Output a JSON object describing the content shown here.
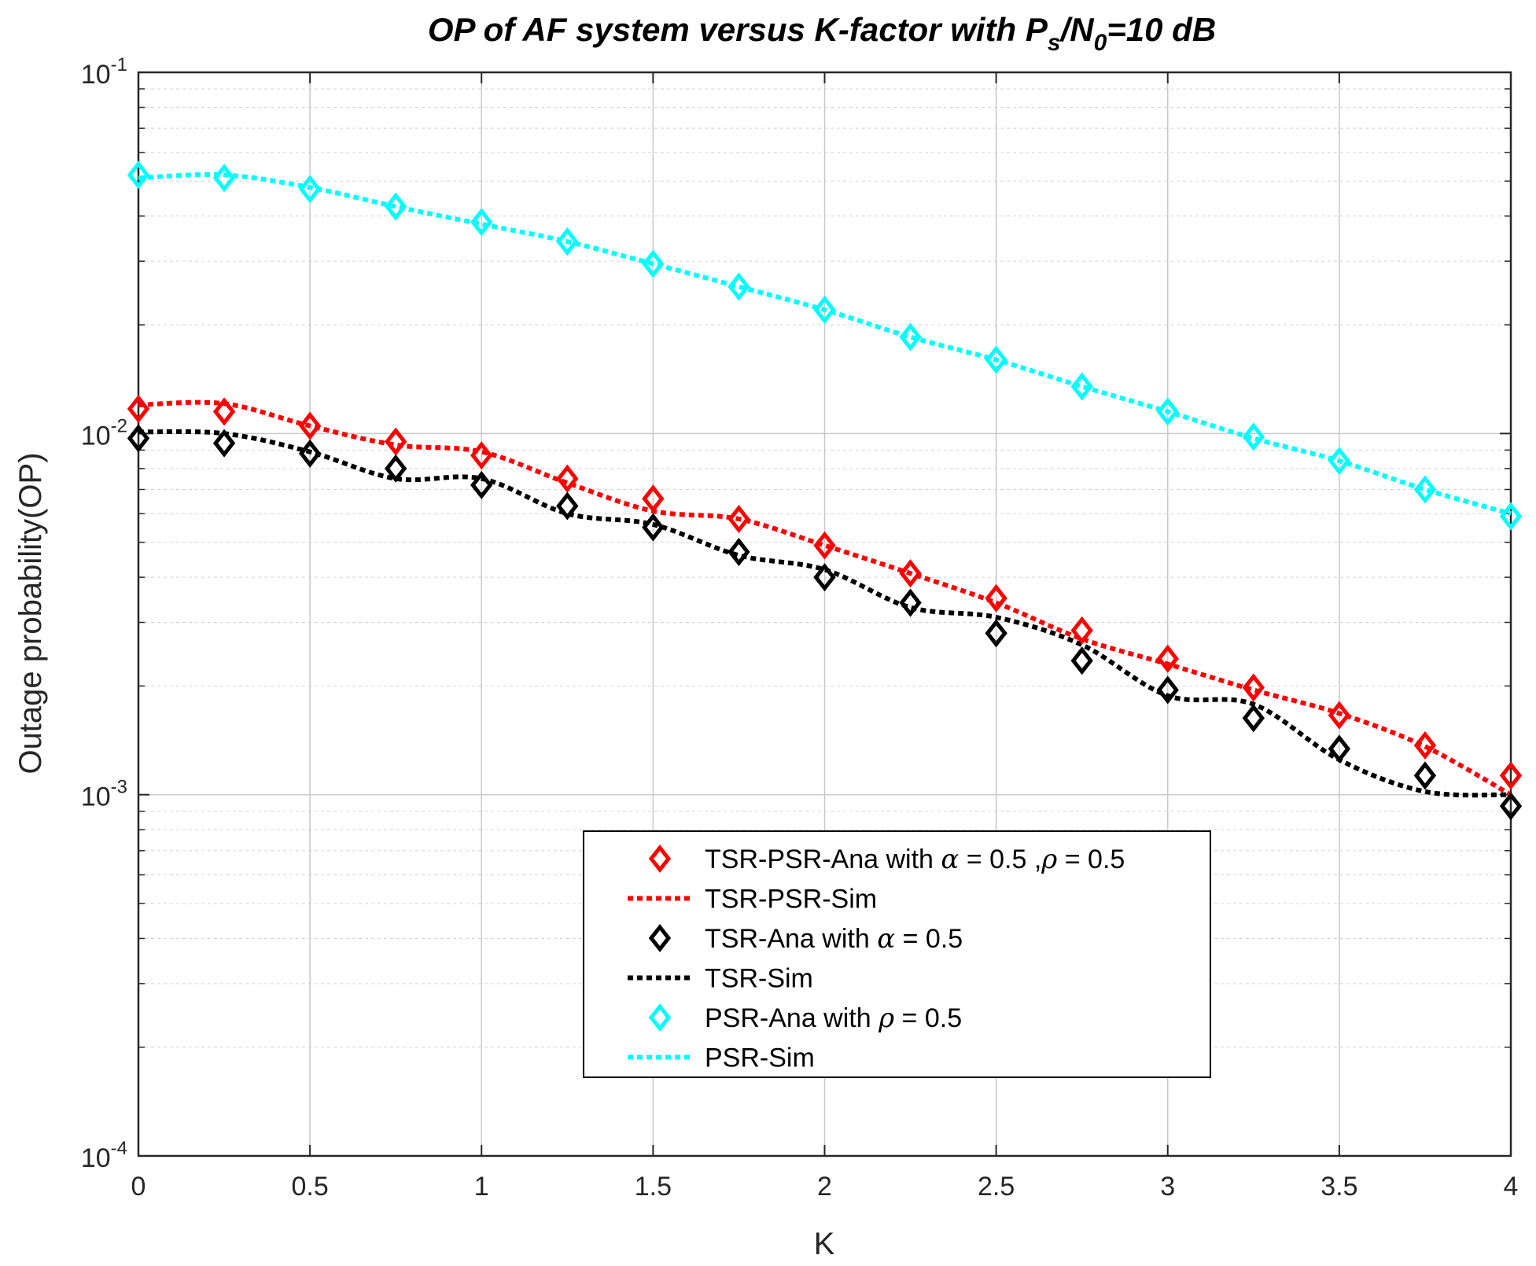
{
  "chart_data": {
    "type": "line",
    "title": {
      "main": "OP of AF system versus K-factor with P",
      "sub1": "s",
      "sep": "/N",
      "sub2": "0",
      "tail": "=10 dB"
    },
    "xlabel": "K",
    "ylabel": "Outage probability(OP)",
    "xlim": [
      0,
      4
    ],
    "ylim": [
      0.0001,
      0.1
    ],
    "yscale": "log",
    "grid": true,
    "x_ticks": [
      "0",
      "0.5",
      "1",
      "1.5",
      "2",
      "2.5",
      "3",
      "3.5",
      "4"
    ],
    "y_ticks": [
      {
        "base": "10",
        "exp": "-1",
        "value": 0.1
      },
      {
        "base": "10",
        "exp": "-2",
        "value": 0.01
      },
      {
        "base": "10",
        "exp": "-3",
        "value": 0.001
      },
      {
        "base": "10",
        "exp": "-4",
        "value": 0.0001
      }
    ],
    "legend_placement": "lower-center",
    "x": [
      0,
      0.25,
      0.5,
      0.75,
      1,
      1.25,
      1.5,
      1.75,
      2,
      2.25,
      2.5,
      2.75,
      3,
      3.25,
      3.5,
      3.75,
      4
    ],
    "series": [
      {
        "name": "TSR-PSR-Ana with α = 0.5 ,ρ = 0.5",
        "legend": {
          "pre": "TSR-PSR-Ana with ",
          "sym1": "α",
          "mid": " = 0.5 ,",
          "sym2": "ρ",
          "post": " = 0.5"
        },
        "style": "marker-diamond",
        "color": "#ff0000",
        "values": [
          0.0117,
          0.0115,
          0.0105,
          0.0095,
          0.0087,
          0.0075,
          0.0066,
          0.0058,
          0.0049,
          0.0041,
          0.0035,
          0.00285,
          0.00238,
          0.00198,
          0.00166,
          0.00137,
          0.00113
        ]
      },
      {
        "name": "TSR-PSR-Sim",
        "legend": {
          "pre": "TSR-PSR-Sim",
          "sym1": "",
          "mid": "",
          "sym2": "",
          "post": ""
        },
        "style": "dotted-line",
        "color": "#ff0000",
        "values": [
          0.012,
          0.0121,
          0.0105,
          0.0093,
          0.0089,
          0.0073,
          0.0061,
          0.0058,
          0.0049,
          0.0041,
          0.0034,
          0.0027,
          0.0023,
          0.00195,
          0.00168,
          0.00136,
          0.001
        ]
      },
      {
        "name": "TSR-Ana with α = 0.5",
        "legend": {
          "pre": "TSR-Ana with ",
          "sym1": "α",
          "mid": " = 0.5",
          "sym2": "",
          "post": ""
        },
        "style": "marker-diamond",
        "color": "#000000",
        "values": [
          0.0097,
          0.0094,
          0.0088,
          0.008,
          0.0072,
          0.0063,
          0.0055,
          0.0047,
          0.004,
          0.0034,
          0.0028,
          0.00235,
          0.00195,
          0.00163,
          0.00134,
          0.00113,
          0.00093
        ]
      },
      {
        "name": "TSR-Sim",
        "legend": {
          "pre": "TSR-Sim",
          "sym1": "",
          "mid": "",
          "sym2": "",
          "post": ""
        },
        "style": "dotted-line",
        "color": "#000000",
        "values": [
          0.0101,
          0.01,
          0.0089,
          0.0075,
          0.0075,
          0.006,
          0.0056,
          0.0046,
          0.0042,
          0.0033,
          0.0031,
          0.0026,
          0.00188,
          0.00178,
          0.00125,
          0.00102,
          0.001
        ]
      },
      {
        "name": "PSR-Ana with ρ = 0.5",
        "legend": {
          "pre": "PSR-Ana with ",
          "sym1": "ρ",
          "mid": " = 0.5",
          "sym2": "",
          "post": ""
        },
        "style": "marker-diamond",
        "color": "#00ffff",
        "values": [
          0.052,
          0.051,
          0.0475,
          0.0425,
          0.0385,
          0.034,
          0.0295,
          0.0255,
          0.022,
          0.0185,
          0.016,
          0.0135,
          0.0115,
          0.0098,
          0.0084,
          0.007,
          0.0059
        ]
      },
      {
        "name": "PSR-Sim",
        "legend": {
          "pre": "PSR-Sim",
          "sym1": "",
          "mid": "",
          "sym2": "",
          "post": ""
        },
        "style": "dotted-line",
        "color": "#00ffff",
        "values": [
          0.051,
          0.052,
          0.048,
          0.0425,
          0.038,
          0.034,
          0.0295,
          0.0255,
          0.022,
          0.0185,
          0.016,
          0.0135,
          0.0115,
          0.0097,
          0.0084,
          0.007,
          0.006
        ]
      }
    ]
  }
}
